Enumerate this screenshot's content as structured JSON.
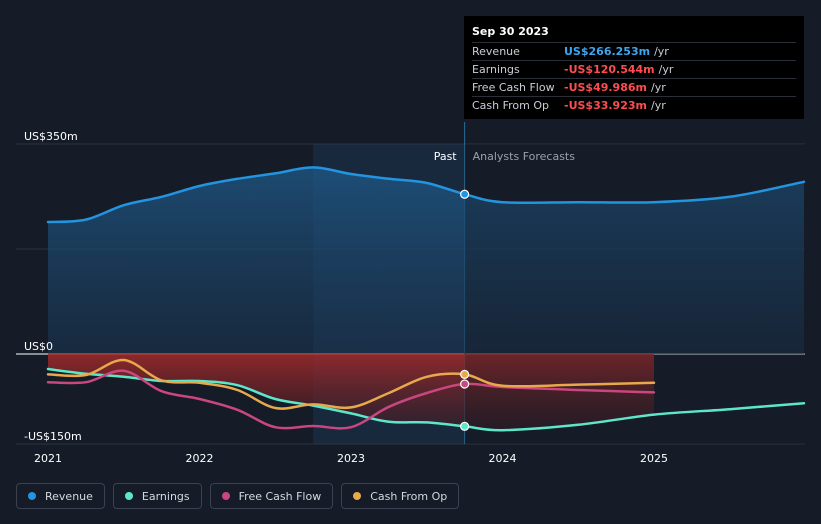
{
  "tooltip": {
    "date": "Sep 30 2023",
    "rows": [
      {
        "label": "Revenue",
        "value": "US$266.253m",
        "unit": "/yr",
        "color": "#3ea5f0"
      },
      {
        "label": "Earnings",
        "value": "-US$120.544m",
        "unit": "/yr",
        "color": "#ff4d4f"
      },
      {
        "label": "Free Cash Flow",
        "value": "-US$49.986m",
        "unit": "/yr",
        "color": "#ff4d4f"
      },
      {
        "label": "Cash From Op",
        "value": "-US$33.923m",
        "unit": "/yr",
        "color": "#ff4d4f"
      }
    ]
  },
  "legend": [
    {
      "label": "Revenue",
      "color": "#2394df"
    },
    {
      "label": "Earnings",
      "color": "#5ee6c8"
    },
    {
      "label": "Free Cash Flow",
      "color": "#c9467f"
    },
    {
      "label": "Cash From Op",
      "color": "#e8a94c"
    }
  ],
  "chart_data": {
    "type": "line",
    "ylim": [
      -150,
      350
    ],
    "y_ticks": [
      {
        "value": 350,
        "label": "US$350m"
      },
      {
        "value": 0,
        "label": "US$0"
      },
      {
        "value": -150,
        "label": "-US$150m"
      }
    ],
    "xlim": [
      2021,
      2025.99
    ],
    "x_ticks": [
      {
        "value": 2021,
        "label": "2021"
      },
      {
        "value": 2022,
        "label": "2022"
      },
      {
        "value": 2023,
        "label": "2023"
      },
      {
        "value": 2024,
        "label": "2024"
      },
      {
        "value": 2025,
        "label": "2025"
      }
    ],
    "divider_x": 2023.75,
    "past_label": "Past",
    "forecast_label": "Analysts Forecasts",
    "series": [
      {
        "name": "Revenue",
        "color": "#2394df",
        "points": [
          [
            2021,
            220
          ],
          [
            2021.25,
            224
          ],
          [
            2021.5,
            248
          ],
          [
            2021.75,
            262
          ],
          [
            2022,
            280
          ],
          [
            2022.25,
            292
          ],
          [
            2022.5,
            301
          ],
          [
            2022.75,
            311
          ],
          [
            2023,
            300
          ],
          [
            2023.25,
            292
          ],
          [
            2023.5,
            285
          ],
          [
            2023.75,
            266.253
          ],
          [
            2024,
            253
          ],
          [
            2024.5,
            253
          ],
          [
            2025,
            253
          ],
          [
            2025.5,
            262
          ],
          [
            2025.99,
            287
          ]
        ]
      },
      {
        "name": "Earnings",
        "color": "#5ee6c8",
        "points": [
          [
            2021,
            -25
          ],
          [
            2021.25,
            -33
          ],
          [
            2021.5,
            -38
          ],
          [
            2021.75,
            -45
          ],
          [
            2022,
            -45
          ],
          [
            2022.25,
            -52
          ],
          [
            2022.5,
            -75
          ],
          [
            2022.75,
            -86
          ],
          [
            2023,
            -99
          ],
          [
            2023.25,
            -113
          ],
          [
            2023.5,
            -114
          ],
          [
            2023.75,
            -120.544
          ],
          [
            2024,
            -127
          ],
          [
            2024.5,
            -118
          ],
          [
            2025,
            -101
          ],
          [
            2025.5,
            -92
          ],
          [
            2025.99,
            -82
          ]
        ]
      },
      {
        "name": "Free Cash Flow",
        "color": "#c9467f",
        "points": [
          [
            2021,
            -47
          ],
          [
            2021.25,
            -47
          ],
          [
            2021.5,
            -28
          ],
          [
            2021.75,
            -62
          ],
          [
            2022,
            -75
          ],
          [
            2022.25,
            -93
          ],
          [
            2022.5,
            -122
          ],
          [
            2022.75,
            -120
          ],
          [
            2023,
            -122
          ],
          [
            2023.25,
            -88
          ],
          [
            2023.5,
            -65
          ],
          [
            2023.75,
            -49.986
          ],
          [
            2024,
            -55
          ],
          [
            2024.5,
            -60
          ],
          [
            2025,
            -64
          ]
        ]
      },
      {
        "name": "Cash From Op",
        "color": "#e8a94c",
        "points": [
          [
            2021,
            -34
          ],
          [
            2021.25,
            -35
          ],
          [
            2021.5,
            -10
          ],
          [
            2021.75,
            -44
          ],
          [
            2022,
            -48
          ],
          [
            2022.25,
            -60
          ],
          [
            2022.5,
            -90
          ],
          [
            2022.75,
            -84
          ],
          [
            2023,
            -89
          ],
          [
            2023.25,
            -65
          ],
          [
            2023.5,
            -38
          ],
          [
            2023.75,
            -33.923
          ],
          [
            2024,
            -53
          ],
          [
            2024.5,
            -51
          ],
          [
            2025,
            -48
          ]
        ]
      }
    ]
  }
}
